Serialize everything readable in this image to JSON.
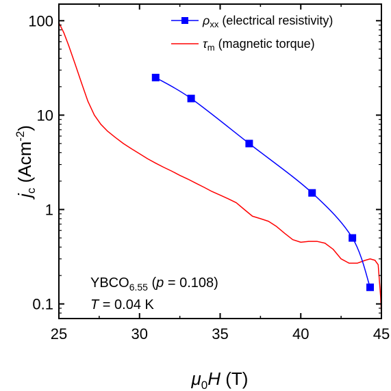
{
  "chart_data": {
    "type": "line",
    "x_axis": {
      "label_prefix": "μ",
      "label_sub": "0",
      "label_main": "H",
      "label_unit": " (T)",
      "range": [
        25,
        45
      ],
      "ticks": [
        "25",
        "30",
        "35",
        "40",
        "45"
      ],
      "tick_values": [
        25,
        30,
        35,
        40,
        45
      ]
    },
    "y_axis": {
      "label_main": "j",
      "label_sub": "c",
      "label_unit": " (Acm",
      "label_sup": "-2",
      "label_close": ")",
      "scale": "log",
      "range": [
        0.07,
        150
      ],
      "ticks": [
        "0.1",
        "1",
        "10",
        "100"
      ],
      "tick_values": [
        0.1,
        1,
        10,
        100
      ]
    },
    "series": [
      {
        "name_symbol": "ρ",
        "name_sub": "xx",
        "name_rest": " (electrical resistivity)",
        "color": "#0000ff",
        "marker": "square",
        "points": [
          [
            31.0,
            25
          ],
          [
            33.2,
            15
          ],
          [
            36.8,
            5
          ],
          [
            40.7,
            1.5
          ],
          [
            43.2,
            0.5
          ],
          [
            44.3,
            0.15
          ]
        ]
      },
      {
        "name_symbol": "τ",
        "name_sub": "m",
        "name_rest": " (magnetic torque)",
        "color": "#ff0000",
        "marker": "none",
        "points": [
          [
            25.0,
            95
          ],
          [
            25.3,
            75
          ],
          [
            25.6,
            55
          ],
          [
            26.0,
            35
          ],
          [
            26.4,
            22
          ],
          [
            26.8,
            14
          ],
          [
            27.2,
            10
          ],
          [
            27.6,
            8
          ],
          [
            28.0,
            6.8
          ],
          [
            28.5,
            5.8
          ],
          [
            29.0,
            5.0
          ],
          [
            29.5,
            4.4
          ],
          [
            30.0,
            3.9
          ],
          [
            30.5,
            3.45
          ],
          [
            31.0,
            3.1
          ],
          [
            31.5,
            2.8
          ],
          [
            32.0,
            2.55
          ],
          [
            32.5,
            2.3
          ],
          [
            33.0,
            2.1
          ],
          [
            33.5,
            1.9
          ],
          [
            34.0,
            1.72
          ],
          [
            34.5,
            1.55
          ],
          [
            35.0,
            1.42
          ],
          [
            35.5,
            1.3
          ],
          [
            36.0,
            1.18
          ],
          [
            36.5,
            1.0
          ],
          [
            37.0,
            0.85
          ],
          [
            37.5,
            0.8
          ],
          [
            38.0,
            0.75
          ],
          [
            38.5,
            0.66
          ],
          [
            39.0,
            0.56
          ],
          [
            39.5,
            0.48
          ],
          [
            40.0,
            0.45
          ],
          [
            40.5,
            0.46
          ],
          [
            41.0,
            0.46
          ],
          [
            41.5,
            0.44
          ],
          [
            42.0,
            0.38
          ],
          [
            42.5,
            0.3
          ],
          [
            43.0,
            0.27
          ],
          [
            43.5,
            0.27
          ],
          [
            44.0,
            0.29
          ],
          [
            44.3,
            0.3
          ],
          [
            44.6,
            0.29
          ],
          [
            44.8,
            0.26
          ],
          [
            44.95,
            0.12
          ],
          [
            45.0,
            0.075
          ]
        ]
      }
    ],
    "annotations": {
      "line1_main": "YBCO",
      "line1_sub": "6.55",
      "line1_open": " (",
      "line1_var": "p",
      "line1_rest": " = 0.108)",
      "line2_var": "T",
      "line2_rest": " = 0.04 K"
    },
    "legend_position": "top-right",
    "grid": false
  }
}
